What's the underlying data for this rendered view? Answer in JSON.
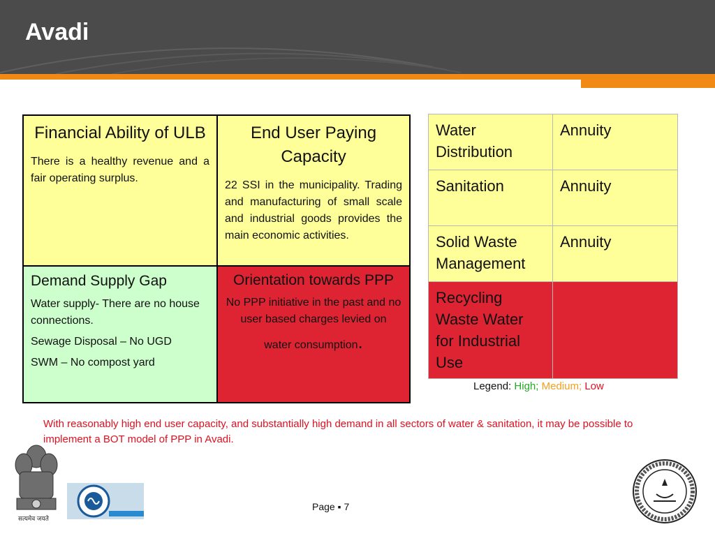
{
  "slide": {
    "title": "Avadi"
  },
  "matrix": {
    "financial": {
      "title": "Financial Ability of ULB",
      "text": "There is a healthy revenue and a fair operating surplus.",
      "rating": "Medium",
      "color": "#ffff99"
    },
    "end_user": {
      "title": "End User Paying Capacity",
      "text": "22 SSI in the municipality. Trading and manufacturing of small scale and industrial goods provides the main economic activities.",
      "rating": "Medium",
      "color": "#ffff99"
    },
    "demand": {
      "title": "Demand Supply Gap",
      "lines": [
        "Water supply- There are no house connections.",
        "Sewage Disposal – No UGD",
        "SWM – No compost yard"
      ],
      "rating": "High",
      "color": "#ccffcc"
    },
    "orientation": {
      "title": "Orientation towards PPP",
      "text": "No PPP initiative in the past and no user based charges levied on",
      "last_line": "water consumption",
      "last_punct": ".",
      "rating": "Low",
      "color": "#de2433"
    }
  },
  "options_table": {
    "rows": [
      {
        "service": "Water Distribution",
        "model": "Annuity",
        "color": "#ffff99"
      },
      {
        "service": "Sanitation",
        "model": "Annuity",
        "color": "#ffff99"
      },
      {
        "service": "Solid Waste Management",
        "model": "Annuity",
        "color": "#ffff99"
      },
      {
        "service": "Recycling Waste Water for Industrial Use",
        "model": "",
        "color": "#de2433"
      }
    ]
  },
  "legend": {
    "prefix": "Legend:",
    "high": "High;",
    "medium": "Medium;",
    "low": "Low",
    "colors": {
      "high": "#22aa22",
      "medium": "#f0a020",
      "low": "#e01020"
    }
  },
  "summary": "With reasonably high end user capacity, and substantially high demand in all sectors of water & sanitation, it may be possible to implement a BOT model of PPP in Avadi.",
  "footer": {
    "emblem_caption": "सत्यमेव जयते",
    "page_label": "Page ▪ 7"
  },
  "colors": {
    "header_bg": "#4b4b4b",
    "accent_orange": "#f08a14",
    "summary_red": "#e01020"
  },
  "icons": {
    "left_logo": "national-emblem-icon",
    "middle_logo": "organization-logo-icon",
    "right_logo": "iit-madras-logo-icon"
  }
}
